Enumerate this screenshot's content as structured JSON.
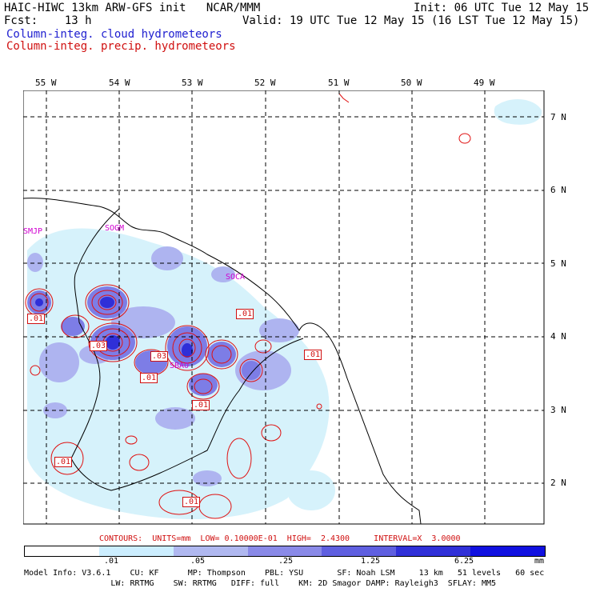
{
  "header": {
    "title_left": "HAIC-HIWC 13km ARW-GFS init   NCAR/MMM",
    "init": "Init: 06 UTC Tue 12 May 15",
    "fcst": "Fcst:    13 h",
    "valid": "Valid: 19 UTC Tue 12 May 15 (16 LST Tue 12 May 15)",
    "field1": "Column-integ. cloud hydrometeors",
    "field2": "Column-integ. precip. hydrometeors"
  },
  "map": {
    "lon_labels": [
      "55 W",
      "54 W",
      "53 W",
      "52 W",
      "51 W",
      "50 W",
      "49 W"
    ],
    "lat_labels": [
      "7 N",
      "6 N",
      "5 N",
      "4 N",
      "3 N",
      "2 N"
    ],
    "place_labels": [
      "SMJP",
      "SOGM",
      "SOCA",
      "SBAO"
    ],
    "contour_labels": [
      ".01",
      ".01",
      ".03",
      ".01",
      ".01",
      ".03",
      ".01",
      ".01",
      ".01",
      ".01"
    ]
  },
  "contours_line": "CONTOURS:  UNITS=mm  LOW= 0.10000E-01  HIGH=  2.4300     INTERVAL=X  3.0000",
  "colorbar": {
    "colors": [
      "#ffffff",
      "#cceeff",
      "#b0b8f0",
      "#8a8ae8",
      "#5f5fe0",
      "#3030d8",
      "#1010e0"
    ],
    "ticks": [
      ".01",
      ".05",
      ".25",
      "1.25",
      "6.25"
    ],
    "units": "mm"
  },
  "footer": {
    "line1": "Model Info: V3.6.1    CU: KF      MP: Thompson    PBL: YSU       SF: Noah LSM     13 km   51 levels   60 sec",
    "line2": "                  LW: RRTMG    SW: RRTMG   DIFF: full    KM: 2D Smagor DAMP: Rayleigh3  SFLAY: MM5"
  }
}
